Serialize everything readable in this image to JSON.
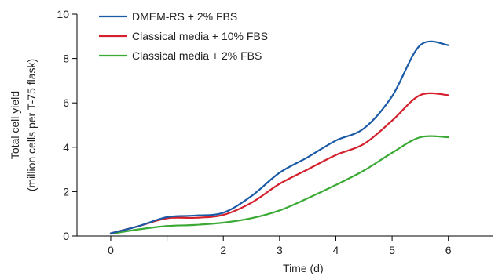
{
  "chart_data": {
    "type": "line",
    "title": "",
    "xlabel": "Time (d)",
    "ylabel_line1": "Total cell yield",
    "ylabel_line2": "(million cells per T-75 flask)",
    "xlim": [
      -0.6,
      6.8
    ],
    "ylim": [
      0,
      10
    ],
    "x_ticks": [
      0,
      1,
      2,
      3,
      4,
      5,
      6
    ],
    "x_tick_labels": [
      "0",
      "",
      "2",
      "3",
      "4",
      "5",
      "6"
    ],
    "y_ticks": [
      0,
      2,
      4,
      6,
      8,
      10
    ],
    "y_tick_labels": [
      "0",
      "2",
      "4",
      "6",
      "8",
      "10"
    ],
    "grid": false,
    "legend_position": "top-left",
    "series": [
      {
        "name": "DMEM-RS + 2% FBS",
        "color": "#1a5aa6",
        "x": [
          0,
          0.5,
          1,
          1.5,
          2,
          2.5,
          3,
          3.5,
          4,
          4.5,
          5,
          5.5,
          6
        ],
        "y": [
          0.12,
          0.45,
          0.85,
          0.92,
          1.05,
          1.8,
          2.85,
          3.55,
          4.3,
          4.85,
          6.3,
          8.6,
          8.6
        ]
      },
      {
        "name": "Classical media + 10% FBS",
        "color": "#d4202c",
        "x": [
          0,
          0.5,
          1,
          1.5,
          2,
          2.5,
          3,
          3.5,
          4,
          4.5,
          5,
          5.5,
          6
        ],
        "y": [
          0.12,
          0.45,
          0.8,
          0.82,
          0.95,
          1.5,
          2.35,
          3.0,
          3.65,
          4.15,
          5.2,
          6.35,
          6.35
        ]
      },
      {
        "name": "Classical media + 2% FBS",
        "color": "#3aaa35",
        "x": [
          0,
          0.5,
          1,
          1.5,
          2,
          2.5,
          3,
          3.5,
          4,
          4.5,
          5,
          5.5,
          6
        ],
        "y": [
          0.1,
          0.3,
          0.45,
          0.5,
          0.6,
          0.8,
          1.15,
          1.7,
          2.3,
          2.95,
          3.75,
          4.45,
          4.45
        ]
      }
    ]
  }
}
